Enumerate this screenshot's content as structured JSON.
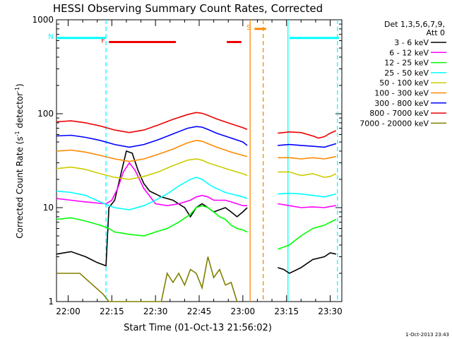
{
  "chart_data": {
    "type": "line",
    "title": "HESSI Observing Summary Count Rates, Corrected",
    "xlabel": "Start Time (01-Oct-13 21:56:02)",
    "ylabel_main": "Corrected Count Rate (s",
    "ylabel_sup1": "-1",
    "ylabel_mid": " detector",
    "ylabel_sup2": "-1",
    "ylabel_end": ")",
    "y_scale": "log",
    "ylim": [
      1,
      1000
    ],
    "xlim_minutes": [
      0,
      98
    ],
    "x_ticks": [
      {
        "m": 4,
        "label": "22:00"
      },
      {
        "m": 19,
        "label": "22:15"
      },
      {
        "m": 34,
        "label": "22:30"
      },
      {
        "m": 49,
        "label": "22:45"
      },
      {
        "m": 64,
        "label": "23:00"
      },
      {
        "m": 79,
        "label": "23:15"
      },
      {
        "m": 94,
        "label": "23:30"
      }
    ],
    "y_ticks": [
      {
        "v": 1,
        "label": "1"
      },
      {
        "v": 10,
        "label": "10"
      },
      {
        "v": 100,
        "label": "100"
      },
      {
        "v": 1000,
        "label": "1000"
      }
    ],
    "legend": {
      "header1": "Det 1,3,5,6,7,9,",
      "header2": "Att 0",
      "position": "right"
    },
    "series": [
      {
        "name": "3 - 6 keV",
        "color": "#000000",
        "x": [
          0,
          5,
          10,
          14,
          17,
          18,
          20,
          22,
          24,
          26,
          28,
          30,
          32,
          34,
          36,
          40,
          44,
          46,
          48,
          50,
          52,
          54,
          56,
          58,
          60,
          62,
          64,
          65.5,
          76,
          78,
          80,
          84,
          88,
          92,
          94,
          96
        ],
        "y": [
          3.2,
          3.4,
          3.0,
          2.6,
          2.4,
          10,
          12,
          22,
          40,
          38,
          25,
          18,
          15,
          14,
          13,
          12,
          10,
          8,
          10,
          11,
          10,
          9,
          9.5,
          10,
          9,
          8,
          9,
          10,
          2.3,
          2.2,
          2.0,
          2.3,
          2.8,
          3.0,
          3.3,
          3.2
        ]
      },
      {
        "name": "6 - 12 keV",
        "color": "#ff00ff",
        "x": [
          0,
          5,
          10,
          14,
          17,
          19,
          21,
          23,
          25,
          27,
          30,
          34,
          38,
          42,
          46,
          48,
          50,
          52,
          54,
          56,
          58,
          60,
          62,
          64,
          65.5,
          76,
          80,
          84,
          88,
          92,
          94,
          96
        ],
        "y": [
          12.5,
          12,
          11.5,
          11.2,
          11,
          12,
          16,
          24,
          30,
          25,
          16,
          11,
          10.5,
          11,
          12,
          13,
          13.5,
          13,
          12,
          12,
          12,
          11.5,
          11,
          10.5,
          10.5,
          11,
          10.5,
          10,
          10.2,
          10,
          10.3,
          10.5
        ]
      },
      {
        "name": "12 - 25 keV",
        "color": "#00ff00",
        "x": [
          0,
          5,
          10,
          15,
          18,
          20,
          25,
          30,
          34,
          38,
          42,
          46,
          48,
          50,
          52,
          54,
          56,
          58,
          60,
          62,
          64,
          65.5,
          76,
          78,
          80,
          82,
          84,
          88,
          92,
          94,
          96
        ],
        "y": [
          7.5,
          7.8,
          7.2,
          6.5,
          6.0,
          5.5,
          5.2,
          5.0,
          5.5,
          6.0,
          7.0,
          8.5,
          10,
          10.5,
          10,
          9.0,
          8.0,
          7.5,
          6.5,
          6.0,
          5.8,
          5.5,
          3.6,
          3.8,
          4.0,
          4.5,
          5.0,
          6.0,
          6.5,
          7.0,
          7.5
        ]
      },
      {
        "name": "25 - 50 keV",
        "color": "#00ffff",
        "x": [
          0,
          5,
          10,
          15,
          18,
          20,
          25,
          30,
          34,
          38,
          42,
          46,
          48,
          50,
          52,
          54,
          56,
          58,
          60,
          62,
          64,
          65.5,
          76,
          80,
          84,
          88,
          92,
          94,
          96
        ],
        "y": [
          15,
          14.5,
          13.5,
          11.5,
          10.5,
          10,
          9.5,
          10.5,
          12,
          14,
          17,
          20,
          21,
          20,
          18,
          16.5,
          15.5,
          14.5,
          14,
          13.5,
          13,
          12.5,
          14,
          14.2,
          14,
          13.5,
          13,
          13.5,
          14
        ]
      },
      {
        "name": "50 - 100 keV",
        "color": "#cccc00",
        "x": [
          0,
          5,
          10,
          15,
          20,
          25,
          30,
          35,
          40,
          45,
          48,
          50,
          52,
          55,
          60,
          64,
          65.5,
          76,
          80,
          84,
          88,
          92,
          94,
          96
        ],
        "y": [
          26,
          27,
          25.5,
          23,
          21,
          20,
          21.5,
          24,
          28,
          32,
          33,
          32,
          30,
          28,
          25,
          23,
          22,
          24,
          24,
          22,
          23,
          21,
          21.5,
          23
        ]
      },
      {
        "name": "100 - 300 keV",
        "color": "#ff8800",
        "x": [
          0,
          5,
          10,
          15,
          20,
          25,
          30,
          35,
          40,
          45,
          48,
          50,
          52,
          55,
          60,
          64,
          65.5,
          76,
          80,
          84,
          88,
          92,
          94,
          96
        ],
        "y": [
          40,
          41,
          39,
          36,
          33,
          31,
          33,
          37,
          42,
          49,
          52,
          51,
          48,
          44,
          39,
          36,
          35,
          34,
          34,
          33,
          34,
          33,
          34,
          35
        ]
      },
      {
        "name": "300 - 800 keV",
        "color": "#0000ff",
        "x": [
          0,
          5,
          10,
          15,
          20,
          25,
          30,
          35,
          40,
          45,
          48,
          50,
          52,
          55,
          60,
          64,
          65.5,
          76,
          80,
          84,
          88,
          92,
          94,
          96
        ],
        "y": [
          58,
          59,
          56,
          52,
          47,
          44,
          47,
          53,
          61,
          70,
          73,
          72,
          68,
          62,
          55,
          50,
          46,
          46,
          47,
          46,
          45,
          44,
          46,
          48
        ]
      },
      {
        "name": "800 - 7000 keV",
        "color": "#ee0000",
        "x": [
          0,
          5,
          10,
          15,
          20,
          25,
          30,
          35,
          40,
          45,
          48,
          50,
          52,
          55,
          60,
          64,
          65.5,
          76,
          80,
          84,
          88,
          90,
          92,
          94,
          96
        ],
        "y": [
          82,
          84,
          80,
          74,
          67,
          63,
          67,
          76,
          87,
          98,
          103,
          101,
          96,
          88,
          78,
          71,
          68,
          62,
          64,
          63,
          58,
          55,
          57,
          62,
          66
        ]
      },
      {
        "name": "7000 - 20000 keV",
        "color": "#808000",
        "x": [
          0,
          8,
          16,
          18,
          36,
          38,
          40,
          42,
          44,
          46,
          48,
          50,
          52,
          54,
          56,
          58,
          60,
          62
        ],
        "y": [
          2.0,
          2.0,
          1.2,
          1.0,
          1.0,
          2.0,
          1.6,
          2.0,
          1.5,
          2.2,
          2.0,
          1.4,
          3.0,
          1.8,
          2.2,
          1.5,
          1.6,
          1.0
        ]
      }
    ],
    "flags": [
      {
        "label": "F",
        "color": "#ee0000",
        "segments": [
          [
            18,
            41
          ],
          [
            58.5,
            63.5
          ]
        ],
        "y": 580
      },
      {
        "label": "N",
        "color": "#00ffff",
        "segments": [
          [
            0,
            17
          ],
          [
            80,
            97
          ]
        ],
        "y": 640
      },
      {
        "label": "S",
        "color": "#ff8800",
        "segments": [
          [
            68,
            72
          ]
        ],
        "y": 800
      }
    ],
    "vlines": [
      {
        "m": 17,
        "color": "#00ffff",
        "dash": true
      },
      {
        "m": 66.5,
        "color": "#ff8800",
        "dash": false
      },
      {
        "m": 71,
        "color": "#ff8800",
        "dash": true
      },
      {
        "m": 79.5,
        "color": "#00ffff",
        "dash": false
      },
      {
        "m": 96.5,
        "color": "#00ffff",
        "dash": true
      }
    ],
    "footer_date": "1-Oct-2013 23:43"
  }
}
